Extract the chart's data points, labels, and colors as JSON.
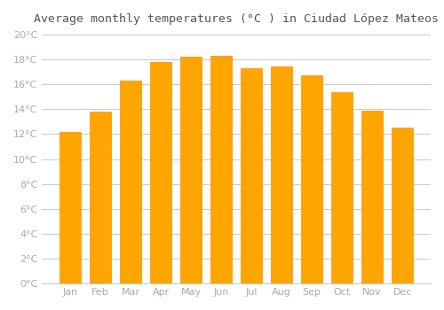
{
  "title": "Average monthly temperatures (°C ) in Ciudad López Mateos",
  "months": [
    "Jan",
    "Feb",
    "Mar",
    "Apr",
    "May",
    "Jun",
    "Jul",
    "Aug",
    "Sep",
    "Oct",
    "Nov",
    "Dec"
  ],
  "temperatures": [
    12.2,
    13.8,
    16.3,
    17.8,
    18.2,
    18.3,
    17.3,
    17.4,
    16.7,
    15.4,
    13.9,
    12.5
  ],
  "bar_color": "#FFA500",
  "bar_edge_color": "#FF8C00",
  "background_color": "#FFFFFF",
  "grid_color": "#CCCCCC",
  "tick_label_color": "#AAAAAA",
  "title_color": "#555555",
  "ylim": [
    0,
    20
  ],
  "ytick_step": 2,
  "figsize": [
    5.0,
    3.5
  ],
  "dpi": 100
}
